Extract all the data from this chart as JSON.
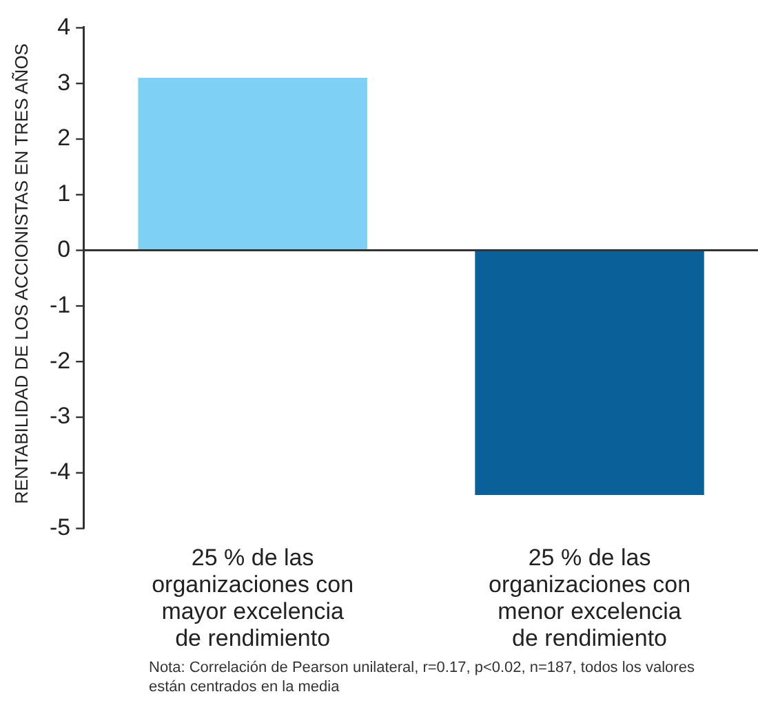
{
  "chart_data": {
    "type": "bar",
    "ylabel": "RENTABILIDAD DE LOS ACCIONISTAS EN TRES AÑOS",
    "categories": [
      "25 % de las organizaciones con mayor excelencia de rendimiento",
      "25 % de las organizaciones con menor excelencia de rendimiento"
    ],
    "values": [
      3.1,
      -4.4
    ],
    "colors": [
      "#7fd0f5",
      "#0a6199"
    ],
    "ref_lines": [
      {
        "axis": "y",
        "value": 0,
        "color": "#333333"
      }
    ],
    "ylim": [
      -5,
      4
    ],
    "yticks": [
      -5,
      -4,
      -3,
      -2,
      -1,
      0,
      1,
      2,
      3,
      4
    ],
    "grid": false,
    "legend": false,
    "annotations": [
      "Nota: Correlación de Pearson unilateral, r=0.17, p<0.02, n=187, todos los valores están centrados en la media"
    ]
  }
}
